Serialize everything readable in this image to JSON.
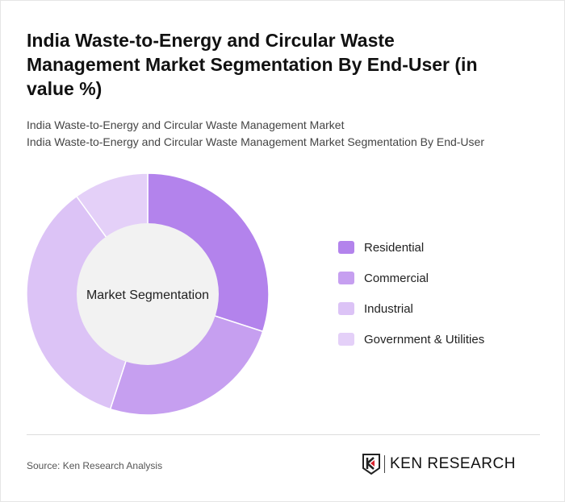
{
  "title": "India Waste-to-Energy and Circular Waste Management Market Segmentation By End-User (in value %)",
  "subtitle1": "India Waste-to-Energy and Circular Waste Management Market",
  "subtitle2": "India Waste-to-Energy and Circular Waste Management Market Segmentation By End-User",
  "source": "Source: Ken Research Analysis",
  "logo_text": "KEN RESEARCH",
  "chart_data": {
    "type": "pie",
    "variant": "donut",
    "center_label": "Market Segmentation",
    "categories": [
      "Residential",
      "Commercial",
      "Industrial",
      "Government & Utilities"
    ],
    "values": [
      30,
      25,
      35,
      10
    ],
    "colors": [
      "#b383ec",
      "#c69ff0",
      "#dcc3f6",
      "#e4d0f8"
    ],
    "legend": "right"
  }
}
